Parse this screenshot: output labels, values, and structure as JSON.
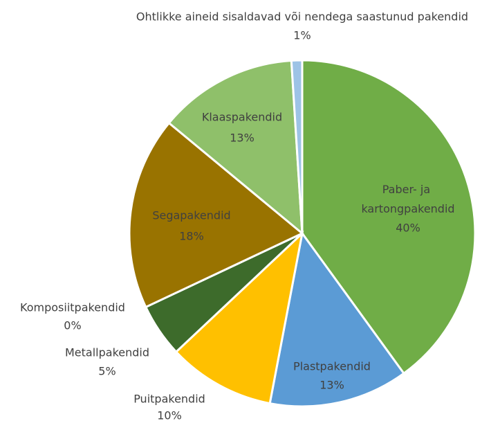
{
  "chart_data": {
    "type": "pie",
    "categories": [
      "Paber- ja kartongpakendid",
      "Plastpakendid",
      "Puitpakendid",
      "Metallpakendid",
      "Komposiitpakendid",
      "Segapakendid",
      "Klaaspakendid",
      "Ohtlikke aineid sisaldavad või nendega saastunud pakendid"
    ],
    "values": [
      40,
      13,
      10,
      5,
      0,
      18,
      13,
      1
    ],
    "value_labels": [
      "40%",
      "13%",
      "10%",
      "5%",
      "0%",
      "18%",
      "13%",
      "1%"
    ],
    "colors": [
      "#70ad47",
      "#5b9bd5",
      "#ffc000",
      "#3d6b2b",
      "#264478",
      "#997300",
      "#8fc06a",
      "#9dc3e6"
    ]
  }
}
